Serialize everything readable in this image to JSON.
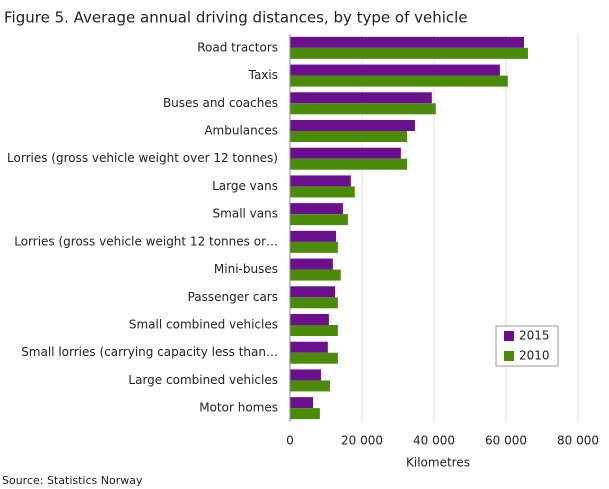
{
  "chart_data": {
    "type": "bar",
    "orientation": "horizontal",
    "title": "Figure 5. Average annual driving distances, by type of vehicle",
    "source": "Source: Statistics Norway",
    "x_label": "Kilometres",
    "categories": [
      "Road tractors",
      "Taxis",
      "Buses and coaches",
      "Ambulances",
      "Lorries (gross vehicle weight over 12 tonnes)",
      "Large vans",
      "Small vans",
      "Lorries (gross vehicle weight 12 tonnes or…",
      "Mini-buses",
      "Passenger cars",
      "Small combined vehicles",
      "Small lorries (carrying capacity less than…",
      "Large combined vehicles",
      "Motor homes"
    ],
    "series": [
      {
        "name": "2015",
        "color": "#6a0f8e",
        "values": [
          65000,
          58300,
          39400,
          34700,
          30800,
          16900,
          14700,
          12800,
          11900,
          12500,
          10800,
          10500,
          8600,
          6400
        ]
      },
      {
        "name": "2010",
        "color": "#4a8c0a",
        "values": [
          66100,
          60500,
          40500,
          32500,
          32500,
          18000,
          16100,
          13300,
          14100,
          13300,
          13300,
          13300,
          11100,
          8300
        ]
      }
    ],
    "xlim": [
      0,
      80000
    ],
    "xticks": [
      0,
      {
        "value": 20000,
        "label": "20 000"
      },
      {
        "value": 40000,
        "label": "40 000"
      },
      {
        "value": 60000,
        "label": "60 000"
      },
      {
        "value": 80000,
        "label": "80 000"
      }
    ],
    "grid": true,
    "legend": "lower right"
  }
}
